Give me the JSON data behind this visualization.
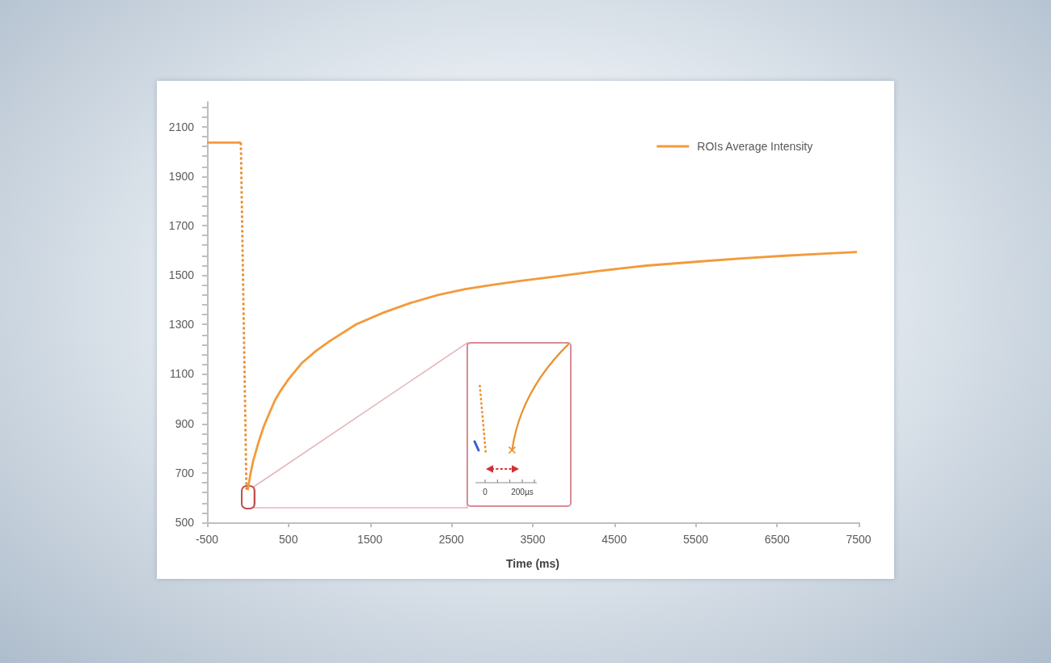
{
  "chart_data": {
    "type": "line",
    "xlabel": "Time (ms)",
    "xlim": [
      -500,
      7500
    ],
    "xticks": [
      -500,
      500,
      1500,
      2500,
      3500,
      4500,
      5500,
      6500,
      7500
    ],
    "ylim": [
      500,
      2200
    ],
    "yticks": [
      500,
      {
        "value": 540,
        "label": null
      },
      {
        "value": 580,
        "label": null
      },
      {
        "value": 620,
        "label": null
      },
      {
        "value": 660,
        "label": null
      },
      700,
      {
        "value": 740,
        "label": null
      },
      {
        "value": 780,
        "label": null
      },
      {
        "value": 820,
        "label": null
      },
      {
        "value": 860,
        "label": null
      },
      900,
      {
        "value": 940,
        "label": null
      },
      {
        "value": 980,
        "label": null
      },
      {
        "value": 1020,
        "label": null
      },
      {
        "value": 1060,
        "label": null
      },
      1100,
      {
        "value": 1140,
        "label": null
      },
      {
        "value": 1180,
        "label": null
      },
      {
        "value": 1220,
        "label": null
      },
      {
        "value": 1260,
        "label": null
      },
      1300,
      {
        "value": 1340,
        "label": null
      },
      {
        "value": 1380,
        "label": null
      },
      {
        "value": 1420,
        "label": null
      },
      {
        "value": 1460,
        "label": null
      },
      1500,
      {
        "value": 1540,
        "label": null
      },
      {
        "value": 1580,
        "label": null
      },
      {
        "value": 1620,
        "label": null
      },
      {
        "value": 1660,
        "label": null
      },
      1700,
      {
        "value": 1740,
        "label": null
      },
      {
        "value": 1780,
        "label": null
      },
      {
        "value": 1820,
        "label": null
      },
      {
        "value": 1860,
        "label": null
      },
      1900,
      {
        "value": 1940,
        "label": null
      },
      {
        "value": 1980,
        "label": null
      },
      {
        "value": 2020,
        "label": null
      },
      {
        "value": 2060,
        "label": null
      },
      2100,
      {
        "value": 2140,
        "label": null
      },
      {
        "value": 2180,
        "label": null
      }
    ],
    "grid": false,
    "legend": "top right",
    "marker": "none",
    "series": [
      {
        "name": "ROIs Average Intensity",
        "color": "#f39a3b",
        "line_style": "solid",
        "x": [
          -500,
          -84,
          -50,
          0,
          34,
          68,
          134,
          200,
          268,
          334,
          400,
          500,
          668,
          834,
          1000,
          1334,
          1668,
          2000,
          2334,
          2668,
          3000,
          3350,
          3730,
          4270,
          4900,
          5600,
          6100,
          6600,
          7050,
          7480
        ],
        "values": [
          2035,
          2035,
          null,
          630,
          695,
          749,
          825,
          890,
          943,
          993,
          1030,
          1078,
          1145,
          1192,
          1231,
          1301,
          1348,
          1387,
          1419,
          1443,
          1460,
          1476,
          1492,
          1515,
          1538,
          1556,
          1568,
          1578,
          1586,
          1593
        ]
      },
      {
        "color": "#e88a2a",
        "line_style": "dotted",
        "x": [
          -84,
          -15
        ],
        "values": [
          2035,
          625
        ]
      }
    ],
    "annotations": [
      "0",
      "200µs"
    ]
  }
}
